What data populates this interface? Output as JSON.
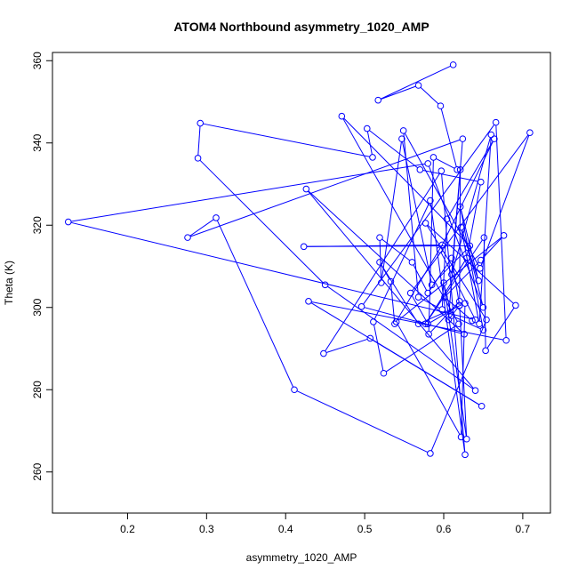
{
  "chart_data": {
    "type": "line",
    "title": "ATOM4 Northbound asymmetry_1020_AMP",
    "xlabel": "asymmetry_1020_AMP",
    "ylabel": "Theta (K)",
    "xlim": [
      0.105,
      0.735
    ],
    "ylim": [
      250,
      362
    ],
    "x_ticks": [
      "0.2",
      "0.3",
      "0.4",
      "0.5",
      "0.6",
      "0.7"
    ],
    "y_ticks": [
      "260",
      "280",
      "300",
      "320",
      "340",
      "360"
    ],
    "grid": false,
    "legend": "none",
    "series_color": "#0000ff",
    "marker": "open-circle",
    "series": [
      {
        "x": [
          0.612,
          0.517,
          0.568,
          0.596,
          0.617,
          0.587,
          0.581,
          0.62,
          0.621,
          0.606,
          0.62,
          0.61,
          0.58,
          0.56,
          0.519,
          0.521,
          0.547,
          0.585,
          0.631,
          0.65,
          0.58,
          0.125,
          0.64,
          0.595,
          0.664,
          0.604,
          0.598,
          0.568,
          0.549,
          0.646,
          0.709,
          0.558,
          0.58,
          0.62,
          0.629,
          0.6,
          0.61,
          0.65,
          0.621,
          0.644,
          0.622,
          0.645,
          0.66,
          0.61,
          0.624,
          0.276,
          0.312,
          0.411,
          0.583,
          0.654,
          0.577,
          0.691,
          0.653,
          0.651,
          0.577,
          0.629,
          0.647,
          0.57,
          0.503,
          0.51,
          0.292,
          0.289,
          0.45,
          0.64,
          0.426,
          0.626,
          0.496,
          0.666,
          0.679,
          0.429,
          0.648,
          0.507,
          0.448,
          0.597,
          0.627,
          0.583,
          0.511,
          0.524,
          0.619,
          0.471,
          0.633,
          0.423,
          0.598,
          0.538,
          0.533,
          0.519,
          0.568,
          0.627,
          0.622,
          0.54,
          0.676,
          0.647,
          0.601,
          0.636
        ],
        "y": [
          359.0,
          350.4,
          354.0,
          349.0,
          333.5,
          336.5,
          293.5,
          301.5,
          333.5,
          297.0,
          300.5,
          312.0,
          303.5,
          311.0,
          317.0,
          306.0,
          341.0,
          305.5,
          314.5,
          300.0,
          335.0,
          320.8,
          297.0,
          314.0,
          341.0,
          321.5,
          299.5,
          302.5,
          343.0,
          309.5,
          342.5,
          303.5,
          296.0,
          300.5,
          268.0,
          306.0,
          298.0,
          294.5,
          324.5,
          306.5,
          319.5,
          296.0,
          342.0,
          308.0,
          341.0,
          317.0,
          321.8,
          280.0,
          264.5,
          297.0,
          320.5,
          300.5,
          289.5,
          317.0,
          296.0,
          312.0,
          330.5,
          333.5,
          343.5,
          336.5,
          344.8,
          336.3,
          305.5,
          279.8,
          328.8,
          293.5,
          300.2,
          345.0,
          292.0,
          301.5,
          276.0,
          292.5,
          288.8,
          333.2,
          264.2,
          326.0,
          296.5,
          284.0,
          296.0,
          346.5,
          315.0,
          314.8,
          315.2,
          296.0,
          306.3,
          311.0,
          296.0,
          301.0,
          268.5,
          296.5,
          317.5,
          311.5,
          302.5,
          296.8
        ]
      }
    ]
  }
}
